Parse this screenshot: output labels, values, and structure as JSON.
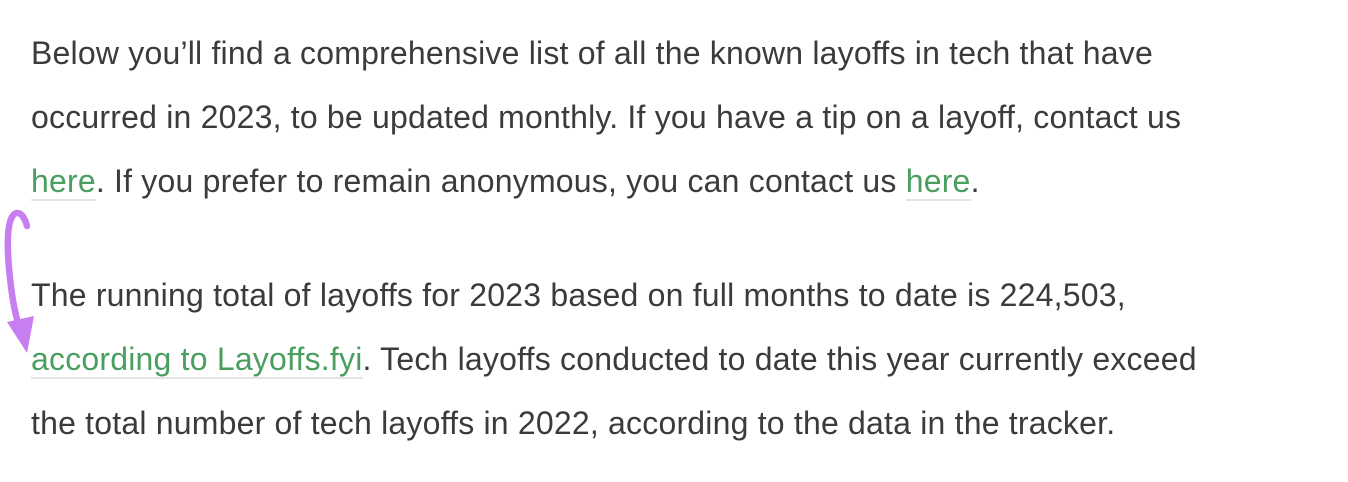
{
  "colors": {
    "text": "#3b3b3b",
    "link": "#4a9e5f",
    "link_underline": "#e4e4e4",
    "background": "#ffffff",
    "arrow": "#c77ef0"
  },
  "annotation": {
    "shape": "curved-down-arrow",
    "color": "#c77ef0"
  },
  "stats": {
    "running_total_2023": "224,503"
  },
  "paragraphs": [
    {
      "name": "intro-paragraph",
      "lines": [
        [
          {
            "t": "Below you’ll find a comprehensive list of all the known layoffs in tech that have"
          }
        ],
        [
          {
            "t": "occurred in 2023, to be updated monthly. If you have a tip on a layoff, contact us"
          }
        ],
        [
          {
            "t": "here",
            "link": true,
            "name": "contact-us-link"
          },
          {
            "t": ". If you prefer to remain anonymous, you can contact us "
          },
          {
            "t": "here",
            "link": true,
            "name": "anonymous-contact-link"
          },
          {
            "t": "."
          }
        ]
      ]
    },
    {
      "name": "running-total-paragraph",
      "lines": [
        [
          {
            "t": "The running total of layoffs for 2023 based on full months to date is 224,503,"
          }
        ],
        [
          {
            "t": "according to Layoffs.fyi",
            "link": true,
            "name": "layoffs-fyi-link"
          },
          {
            "t": ". Tech layoffs conducted to date this year currently exceed"
          }
        ],
        [
          {
            "t": "the total number of tech layoffs in 2022, according to the data in the tracker."
          }
        ]
      ]
    }
  ]
}
